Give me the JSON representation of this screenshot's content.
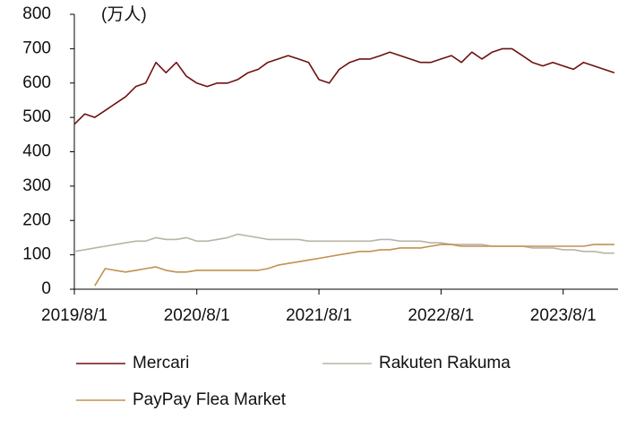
{
  "chart_data": {
    "type": "line",
    "unit_label": "(万人)",
    "x": [
      "2019/8/1",
      "2019/9/1",
      "2019/10/1",
      "2019/11/1",
      "2019/12/1",
      "2020/1/1",
      "2020/2/1",
      "2020/3/1",
      "2020/4/1",
      "2020/5/1",
      "2020/6/1",
      "2020/7/1",
      "2020/8/1",
      "2020/9/1",
      "2020/10/1",
      "2020/11/1",
      "2020/12/1",
      "2021/1/1",
      "2021/2/1",
      "2021/3/1",
      "2021/4/1",
      "2021/5/1",
      "2021/6/1",
      "2021/7/1",
      "2021/8/1",
      "2021/9/1",
      "2021/10/1",
      "2021/11/1",
      "2021/12/1",
      "2022/1/1",
      "2022/2/1",
      "2022/3/1",
      "2022/4/1",
      "2022/5/1",
      "2022/6/1",
      "2022/7/1",
      "2022/8/1",
      "2022/9/1",
      "2022/10/1",
      "2022/11/1",
      "2022/12/1",
      "2023/1/1",
      "2023/2/1",
      "2023/3/1",
      "2023/4/1",
      "2023/5/1",
      "2023/6/1",
      "2023/7/1",
      "2023/8/1",
      "2023/9/1",
      "2023/10/1",
      "2023/11/1",
      "2023/12/1",
      "2024/1/1"
    ],
    "series": [
      {
        "name": "Mercari",
        "color": "#6e1010",
        "values": [
          480,
          510,
          500,
          520,
          540,
          560,
          590,
          600,
          660,
          630,
          660,
          620,
          600,
          590,
          600,
          600,
          610,
          630,
          640,
          660,
          670,
          680,
          670,
          660,
          610,
          600,
          640,
          660,
          670,
          670,
          680,
          690,
          680,
          670,
          660,
          660,
          670,
          680,
          660,
          690,
          670,
          690,
          700,
          700,
          680,
          660,
          650,
          660,
          650,
          640,
          660,
          650,
          640,
          630
        ]
      },
      {
        "name": "Rakuten Rakuma",
        "color": "#b4b6a6",
        "values": [
          110,
          115,
          120,
          125,
          130,
          135,
          140,
          140,
          150,
          145,
          145,
          150,
          140,
          140,
          145,
          150,
          160,
          155,
          150,
          145,
          145,
          145,
          145,
          140,
          140,
          140,
          140,
          140,
          140,
          140,
          145,
          145,
          140,
          140,
          140,
          135,
          135,
          130,
          130,
          130,
          130,
          125,
          125,
          125,
          125,
          120,
          120,
          120,
          115,
          115,
          110,
          110,
          105,
          105
        ]
      },
      {
        "name": "PayPay Flea Market",
        "color": "#c29150",
        "values": [
          null,
          null,
          10,
          60,
          55,
          50,
          55,
          60,
          65,
          55,
          50,
          50,
          55,
          55,
          55,
          55,
          55,
          55,
          55,
          60,
          70,
          75,
          80,
          85,
          90,
          95,
          100,
          105,
          110,
          110,
          115,
          115,
          120,
          120,
          120,
          125,
          130,
          130,
          125,
          125,
          125,
          125,
          125,
          125,
          125,
          125,
          125,
          125,
          125,
          125,
          125,
          130,
          130,
          130
        ]
      }
    ],
    "xlim": [
      "2019/8/1",
      "2024/1/12"
    ],
    "xticks": [
      "2019/8/1",
      "2020/8/1",
      "2021/8/1",
      "2022/8/1",
      "2023/8/1"
    ],
    "ylim": [
      0,
      800
    ],
    "yticks": [
      0,
      100,
      200,
      300,
      400,
      500,
      600,
      700,
      800
    ],
    "grid": false
  }
}
